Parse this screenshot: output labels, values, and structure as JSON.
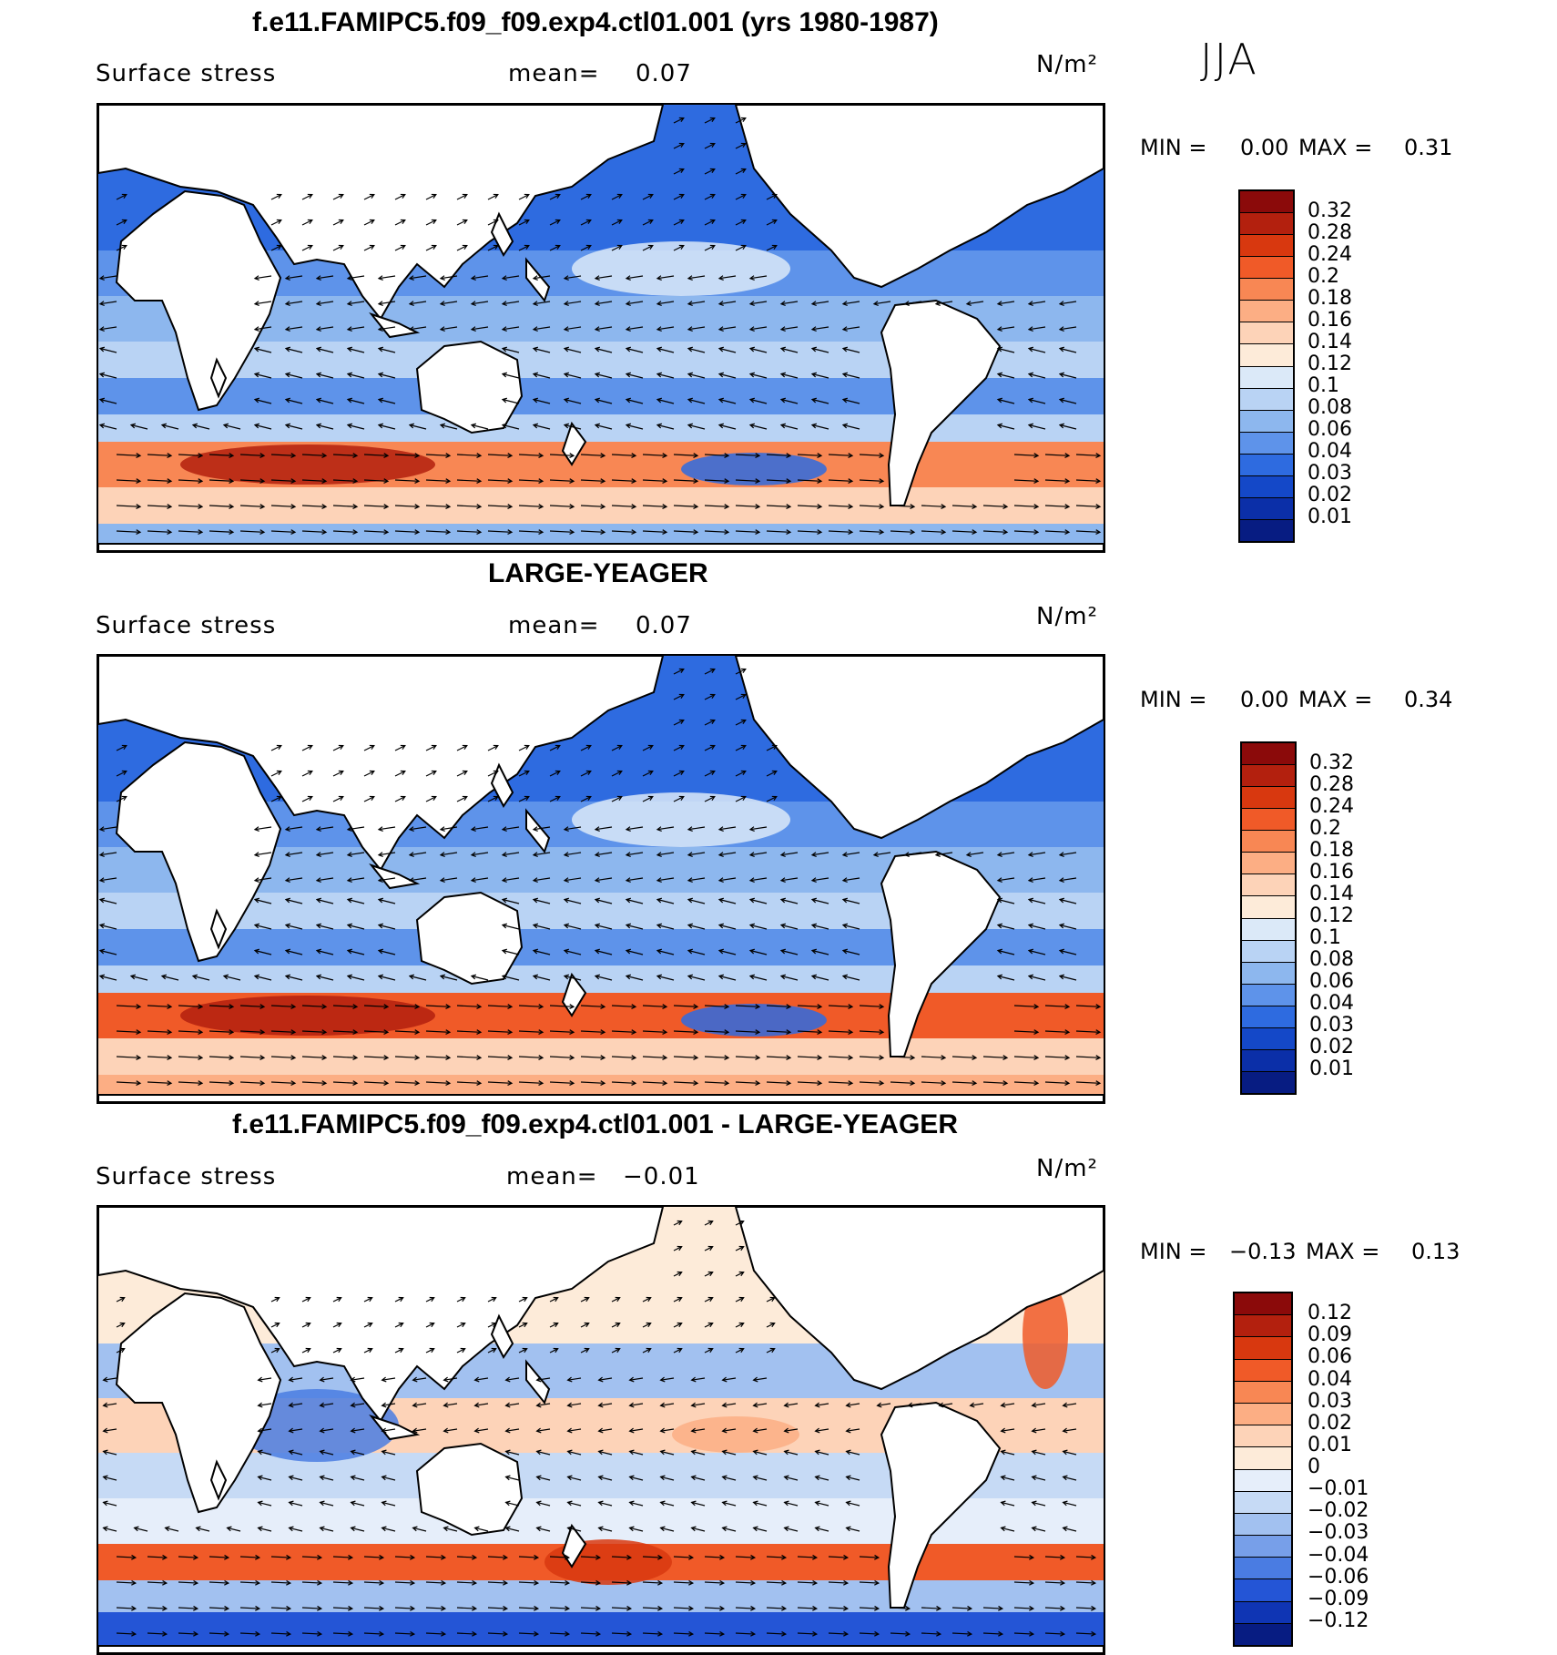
{
  "season": "JJA",
  "panels": [
    {
      "title": "f.e11.FAMIPC5.f09_f09.exp4.ctl01.001 (yrs 1980-1987)",
      "field": "Surface stress",
      "mean_label": "mean=",
      "mean_value": "0.07",
      "units": "N/m²",
      "min_label": "MIN =",
      "min_value": "0.00",
      "max_label": "MAX =",
      "max_value": "0.31",
      "kind": "abs",
      "colorbar_labels": [
        "0.32",
        "0.28",
        "0.24",
        "0.2",
        "0.18",
        "0.16",
        "0.14",
        "0.12",
        "0.1",
        "0.08",
        "0.06",
        "0.04",
        "0.03",
        "0.02",
        "0.01"
      ]
    },
    {
      "title": "LARGE-YEAGER",
      "field": "Surface stress",
      "mean_label": "mean=",
      "mean_value": "0.07",
      "units": "N/m²",
      "min_label": "MIN =",
      "min_value": "0.00",
      "max_label": "MAX =",
      "max_value": "0.34",
      "kind": "abs",
      "colorbar_labels": [
        "0.32",
        "0.28",
        "0.24",
        "0.2",
        "0.18",
        "0.16",
        "0.14",
        "0.12",
        "0.1",
        "0.08",
        "0.06",
        "0.04",
        "0.03",
        "0.02",
        "0.01"
      ]
    },
    {
      "title": "f.e11.FAMIPC5.f09_f09.exp4.ctl01.001 - LARGE-YEAGER",
      "field": "Surface stress",
      "mean_label": "mean=",
      "mean_value": "−0.01",
      "units": "N/m²",
      "min_label": "MIN =",
      "min_value": "−0.13",
      "max_label": "MAX =",
      "max_value": "0.13",
      "kind": "diff",
      "colorbar_labels": [
        "0.12",
        "0.09",
        "0.06",
        "0.04",
        "0.03",
        "0.02",
        "0.01",
        "0",
        "−0.01",
        "−0.02",
        "−0.03",
        "−0.04",
        "−0.06",
        "−0.09",
        "−0.12"
      ]
    }
  ],
  "colors": {
    "abs_scale": [
      "#8b0a0a",
      "#b3200e",
      "#d8380f",
      "#f05a28",
      "#f88754",
      "#fcae84",
      "#fdd3b8",
      "#fdebd9",
      "#dbe9f8",
      "#b9d3f4",
      "#8db7ee",
      "#5e93ea",
      "#2e6be0",
      "#1448c8",
      "#0b2fa8",
      "#071c82"
    ],
    "diff_scale": [
      "#8b0a0a",
      "#b3200e",
      "#d8380f",
      "#f05a28",
      "#f88754",
      "#fcae84",
      "#fdd3b8",
      "#fdebd9",
      "#e6eefa",
      "#c6daf5",
      "#a2c1f0",
      "#779fe9",
      "#4a7ce2",
      "#2455d6",
      "#0f35b4",
      "#071c82"
    ],
    "land": "#ffffff",
    "coast": "#000000"
  }
}
